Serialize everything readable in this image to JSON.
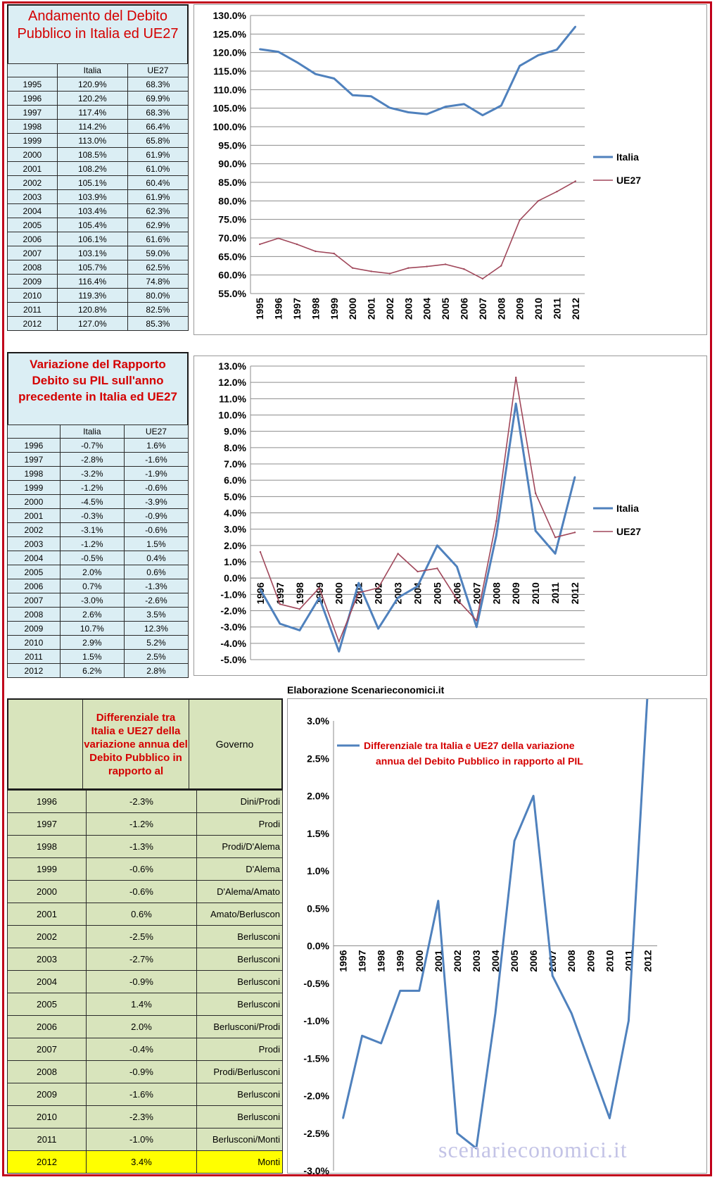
{
  "section1": {
    "title": "Andamento del Debito Pubblico in Italia ed UE27",
    "col_italia": "Italia",
    "col_ue27": "UE27",
    "rows": [
      [
        "1995",
        "120.9%",
        "68.3%"
      ],
      [
        "1996",
        "120.2%",
        "69.9%"
      ],
      [
        "1997",
        "117.4%",
        "68.3%"
      ],
      [
        "1998",
        "114.2%",
        "66.4%"
      ],
      [
        "1999",
        "113.0%",
        "65.8%"
      ],
      [
        "2000",
        "108.5%",
        "61.9%"
      ],
      [
        "2001",
        "108.2%",
        "61.0%"
      ],
      [
        "2002",
        "105.1%",
        "60.4%"
      ],
      [
        "2003",
        "103.9%",
        "61.9%"
      ],
      [
        "2004",
        "103.4%",
        "62.3%"
      ],
      [
        "2005",
        "105.4%",
        "62.9%"
      ],
      [
        "2006",
        "106.1%",
        "61.6%"
      ],
      [
        "2007",
        "103.1%",
        "59.0%"
      ],
      [
        "2008",
        "105.7%",
        "62.5%"
      ],
      [
        "2009",
        "116.4%",
        "74.8%"
      ],
      [
        "2010",
        "119.3%",
        "80.0%"
      ],
      [
        "2011",
        "120.8%",
        "82.5%"
      ],
      [
        "2012",
        "127.0%",
        "85.3%"
      ]
    ]
  },
  "section2": {
    "title": "Variazione del Rapporto Debito su PIL sull'anno precedente in Italia ed UE27",
    "col_italia": "Italia",
    "col_ue27": "UE27",
    "rows": [
      [
        "1996",
        "-0.7%",
        "1.6%"
      ],
      [
        "1997",
        "-2.8%",
        "-1.6%"
      ],
      [
        "1998",
        "-3.2%",
        "-1.9%"
      ],
      [
        "1999",
        "-1.2%",
        "-0.6%"
      ],
      [
        "2000",
        "-4.5%",
        "-3.9%"
      ],
      [
        "2001",
        "-0.3%",
        "-0.9%"
      ],
      [
        "2002",
        "-3.1%",
        "-0.6%"
      ],
      [
        "2003",
        "-1.2%",
        "1.5%"
      ],
      [
        "2004",
        "-0.5%",
        "0.4%"
      ],
      [
        "2005",
        "2.0%",
        "0.6%"
      ],
      [
        "2006",
        "0.7%",
        "-1.3%"
      ],
      [
        "2007",
        "-3.0%",
        "-2.6%"
      ],
      [
        "2008",
        "2.6%",
        "3.5%"
      ],
      [
        "2009",
        "10.7%",
        "12.3%"
      ],
      [
        "2010",
        "2.9%",
        "5.2%"
      ],
      [
        "2011",
        "1.5%",
        "2.5%"
      ],
      [
        "2012",
        "6.2%",
        "2.8%"
      ]
    ]
  },
  "section3": {
    "header_diff": "Differenziale tra Italia e UE27 della variazione annua del Debito Pubblico in rapporto al",
    "header_gov": "Governo",
    "chart_header": "Elaborazione Scenarieconomici.it",
    "watermark": "scenarieconomici.it",
    "rows": [
      [
        "1996",
        "-2.3%",
        "Dini/Prodi"
      ],
      [
        "1997",
        "-1.2%",
        "Prodi"
      ],
      [
        "1998",
        "-1.3%",
        "Prodi/D'Alema"
      ],
      [
        "1999",
        "-0.6%",
        "D'Alema"
      ],
      [
        "2000",
        "-0.6%",
        "D'Alema/Amato"
      ],
      [
        "2001",
        "0.6%",
        "Amato/Berluscon"
      ],
      [
        "2002",
        "-2.5%",
        "Berlusconi"
      ],
      [
        "2003",
        "-2.7%",
        "Berlusconi"
      ],
      [
        "2004",
        "-0.9%",
        "Berlusconi"
      ],
      [
        "2005",
        "1.4%",
        "Berlusconi"
      ],
      [
        "2006",
        "2.0%",
        "Berlusconi/Prodi"
      ],
      [
        "2007",
        "-0.4%",
        "Prodi"
      ],
      [
        "2008",
        "-0.9%",
        "Prodi/Berlusconi"
      ],
      [
        "2009",
        "-1.6%",
        "Berlusconi"
      ],
      [
        "2010",
        "-2.3%",
        "Berlusconi"
      ],
      [
        "2011",
        "-1.0%",
        "Berlusconi/Monti"
      ],
      [
        "2012",
        "3.4%",
        "Monti"
      ]
    ]
  },
  "chart_data": [
    {
      "type": "line",
      "x": [
        "1995",
        "1996",
        "1997",
        "1998",
        "1999",
        "2000",
        "2001",
        "2002",
        "2003",
        "2004",
        "2005",
        "2006",
        "2007",
        "2008",
        "2009",
        "2010",
        "2011",
        "2012"
      ],
      "series": [
        {
          "name": "Italia",
          "color": "#4f81bd",
          "values": [
            120.9,
            120.2,
            117.4,
            114.2,
            113.0,
            108.5,
            108.2,
            105.1,
            103.9,
            103.4,
            105.4,
            106.1,
            103.1,
            105.7,
            116.4,
            119.3,
            120.8,
            127.0
          ]
        },
        {
          "name": "UE27",
          "color": "#a0475a",
          "values": [
            68.3,
            69.9,
            68.3,
            66.4,
            65.8,
            61.9,
            61.0,
            60.4,
            61.9,
            62.3,
            62.9,
            61.6,
            59.0,
            62.5,
            74.8,
            80.0,
            82.5,
            85.3
          ]
        }
      ],
      "ylim": [
        55,
        130
      ],
      "yticks": [
        "55.0%",
        "60.0%",
        "65.0%",
        "70.0%",
        "75.0%",
        "80.0%",
        "85.0%",
        "90.0%",
        "95.0%",
        "100.0%",
        "105.0%",
        "110.0%",
        "115.0%",
        "120.0%",
        "125.0%",
        "130.0%"
      ],
      "legend": "right",
      "grid": true
    },
    {
      "type": "line",
      "x": [
        "1996",
        "1997",
        "1998",
        "1999",
        "2000",
        "2001",
        "2002",
        "2003",
        "2004",
        "2005",
        "2006",
        "2007",
        "2008",
        "2009",
        "2010",
        "2011",
        "2012"
      ],
      "series": [
        {
          "name": "Italia",
          "color": "#4f81bd",
          "values": [
            -0.7,
            -2.8,
            -3.2,
            -1.2,
            -4.5,
            -0.3,
            -3.1,
            -1.2,
            -0.5,
            2.0,
            0.7,
            -3.0,
            2.6,
            10.7,
            2.9,
            1.5,
            6.2
          ]
        },
        {
          "name": "UE27",
          "color": "#a0475a",
          "values": [
            1.6,
            -1.6,
            -1.9,
            -0.6,
            -3.9,
            -0.9,
            -0.6,
            1.5,
            0.4,
            0.6,
            -1.3,
            -2.6,
            3.5,
            12.3,
            5.2,
            2.5,
            2.8
          ]
        }
      ],
      "ylim": [
        -5,
        13
      ],
      "yticks": [
        "-5.0%",
        "-4.0%",
        "-3.0%",
        "-2.0%",
        "-1.0%",
        "0.0%",
        "1.0%",
        "2.0%",
        "3.0%",
        "4.0%",
        "5.0%",
        "6.0%",
        "7.0%",
        "8.0%",
        "9.0%",
        "10.0%",
        "11.0%",
        "12.0%",
        "13.0%"
      ],
      "legend": "right",
      "grid": true
    },
    {
      "type": "line",
      "x": [
        "1996",
        "1997",
        "1998",
        "1999",
        "2000",
        "2001",
        "2002",
        "2003",
        "2004",
        "2005",
        "2006",
        "2007",
        "2008",
        "2009",
        "2010",
        "2011",
        "2012"
      ],
      "series": [
        {
          "name": "Differenziale tra Italia e UE27 della variazione annua del Debito Pubblico in rapporto al PIL",
          "color": "#4f81bd",
          "values": [
            -2.3,
            -1.2,
            -1.3,
            -0.6,
            -0.6,
            0.6,
            -2.5,
            -2.7,
            -0.9,
            1.4,
            2.0,
            -0.4,
            -0.9,
            -1.6,
            -2.3,
            -1.0,
            3.4
          ]
        }
      ],
      "ylim": [
        -3,
        3
      ],
      "yticks": [
        "-3.0%",
        "-2.5%",
        "-2.0%",
        "-1.5%",
        "-1.0%",
        "-0.5%",
        "0.0%",
        "0.5%",
        "1.0%",
        "1.5%",
        "2.0%",
        "2.5%",
        "3.0%"
      ],
      "legend": "top",
      "grid": false
    }
  ]
}
